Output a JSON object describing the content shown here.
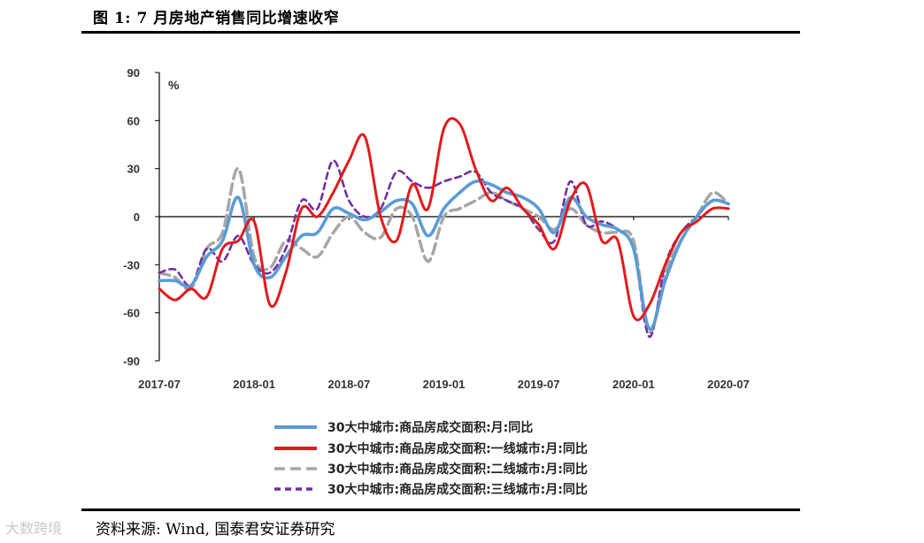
{
  "figure": {
    "title": "图 1:  7 月房地产销售同比增速收窄",
    "source": "资料来源:  Wind, 国泰君安证券研究",
    "watermark": "大数跨境"
  },
  "chart_data": {
    "type": "line",
    "title": "7 月房地产销售同比增速收窄",
    "ylabel": "%",
    "xlabel": "",
    "ylim": [
      -90,
      90
    ],
    "yticks": [
      90,
      60,
      30,
      0,
      -30,
      -60,
      -90
    ],
    "xlim": [
      0,
      36
    ],
    "x_tick_labels": [
      {
        "x": 0,
        "label": "2017-07"
      },
      {
        "x": 6,
        "label": "2018-01"
      },
      {
        "x": 12,
        "label": "2018-07"
      },
      {
        "x": 18,
        "label": "2019-01"
      },
      {
        "x": 24,
        "label": "2019-07"
      },
      {
        "x": 30,
        "label": "2020-01"
      },
      {
        "x": 36,
        "label": "2020-07"
      }
    ],
    "legend_position": "bottom",
    "series": [
      {
        "name": "30大中城市:商品房成交面积:月:同比",
        "color": "#5b9bd5",
        "dash": "solid",
        "points": [
          [
            0,
            -40
          ],
          [
            1,
            -40
          ],
          [
            2,
            -43
          ],
          [
            3,
            -25
          ],
          [
            4,
            -15
          ],
          [
            5,
            12
          ],
          [
            6,
            -30
          ],
          [
            7,
            -38
          ],
          [
            8,
            -25
          ],
          [
            9,
            -12
          ],
          [
            10,
            -10
          ],
          [
            11,
            5
          ],
          [
            12,
            2
          ],
          [
            13,
            -2
          ],
          [
            14,
            3
          ],
          [
            15,
            10
          ],
          [
            16,
            8
          ],
          [
            17,
            -12
          ],
          [
            18,
            5
          ],
          [
            19,
            15
          ],
          [
            20,
            22
          ],
          [
            21,
            20
          ],
          [
            22,
            15
          ],
          [
            23,
            12
          ],
          [
            24,
            5
          ],
          [
            25,
            -10
          ],
          [
            26,
            12
          ],
          [
            27,
            0
          ],
          [
            28,
            -5
          ],
          [
            29,
            -8
          ],
          [
            30,
            -20
          ],
          [
            31,
            -70
          ],
          [
            32,
            -40
          ],
          [
            33,
            -15
          ],
          [
            34,
            0
          ],
          [
            35,
            10
          ],
          [
            36,
            8
          ]
        ]
      },
      {
        "name": "30大中城市:商品房成交面积:一线城市:月:同比",
        "color": "#e31a1c",
        "dash": "solid",
        "points": [
          [
            0,
            -45
          ],
          [
            1,
            -52
          ],
          [
            2,
            -45
          ],
          [
            3,
            -50
          ],
          [
            4,
            -20
          ],
          [
            5,
            -15
          ],
          [
            6,
            -3
          ],
          [
            7,
            -55
          ],
          [
            8,
            -35
          ],
          [
            9,
            5
          ],
          [
            10,
            0
          ],
          [
            11,
            15
          ],
          [
            12,
            35
          ],
          [
            13,
            50
          ],
          [
            14,
            0
          ],
          [
            15,
            -15
          ],
          [
            16,
            20
          ],
          [
            17,
            5
          ],
          [
            18,
            55
          ],
          [
            19,
            58
          ],
          [
            20,
            30
          ],
          [
            21,
            10
          ],
          [
            22,
            18
          ],
          [
            23,
            5
          ],
          [
            24,
            -5
          ],
          [
            25,
            -20
          ],
          [
            26,
            10
          ],
          [
            27,
            20
          ],
          [
            28,
            -15
          ],
          [
            29,
            -15
          ],
          [
            30,
            -62
          ],
          [
            31,
            -55
          ],
          [
            32,
            -30
          ],
          [
            33,
            -10
          ],
          [
            34,
            -3
          ],
          [
            35,
            5
          ],
          [
            36,
            5
          ]
        ]
      },
      {
        "name": "30大中城市:商品房成交面积:二线城市:月:同比",
        "color": "#a6a6a6",
        "dash": "dashed",
        "points": [
          [
            0,
            -35
          ],
          [
            1,
            -38
          ],
          [
            2,
            -45
          ],
          [
            3,
            -20
          ],
          [
            4,
            -10
          ],
          [
            5,
            30
          ],
          [
            6,
            -25
          ],
          [
            7,
            -32
          ],
          [
            8,
            -15
          ],
          [
            9,
            -20
          ],
          [
            10,
            -25
          ],
          [
            11,
            -10
          ],
          [
            12,
            0
          ],
          [
            13,
            -10
          ],
          [
            14,
            -13
          ],
          [
            15,
            5
          ],
          [
            16,
            0
          ],
          [
            17,
            -28
          ],
          [
            18,
            0
          ],
          [
            19,
            5
          ],
          [
            20,
            10
          ],
          [
            21,
            15
          ],
          [
            22,
            10
          ],
          [
            23,
            5
          ],
          [
            24,
            0
          ],
          [
            25,
            -8
          ],
          [
            26,
            5
          ],
          [
            27,
            -5
          ],
          [
            28,
            -10
          ],
          [
            29,
            -10
          ],
          [
            30,
            -15
          ],
          [
            31,
            -72
          ],
          [
            32,
            -35
          ],
          [
            33,
            -15
          ],
          [
            34,
            0
          ],
          [
            35,
            15
          ],
          [
            36,
            8
          ]
        ]
      },
      {
        "name": "30大中城市:商品房成交面积:三线城市:月:同比",
        "color": "#7030a0",
        "dash": "dashed",
        "points": [
          [
            0,
            -35
          ],
          [
            1,
            -33
          ],
          [
            2,
            -43
          ],
          [
            3,
            -20
          ],
          [
            4,
            -28
          ],
          [
            5,
            -12
          ],
          [
            6,
            -30
          ],
          [
            7,
            -35
          ],
          [
            8,
            -20
          ],
          [
            9,
            10
          ],
          [
            10,
            5
          ],
          [
            11,
            35
          ],
          [
            12,
            10
          ],
          [
            13,
            0
          ],
          [
            14,
            5
          ],
          [
            15,
            28
          ],
          [
            16,
            22
          ],
          [
            17,
            18
          ],
          [
            18,
            22
          ],
          [
            19,
            25
          ],
          [
            20,
            28
          ],
          [
            21,
            15
          ],
          [
            22,
            10
          ],
          [
            23,
            5
          ],
          [
            24,
            -8
          ],
          [
            25,
            -15
          ],
          [
            26,
            22
          ],
          [
            27,
            -5
          ],
          [
            28,
            -3
          ],
          [
            29,
            -8
          ],
          [
            30,
            -20
          ],
          [
            31,
            -75
          ],
          [
            32,
            -30
          ],
          [
            33,
            -10
          ],
          [
            34,
            0
          ],
          [
            35,
            10
          ],
          [
            36,
            8
          ]
        ]
      }
    ]
  }
}
